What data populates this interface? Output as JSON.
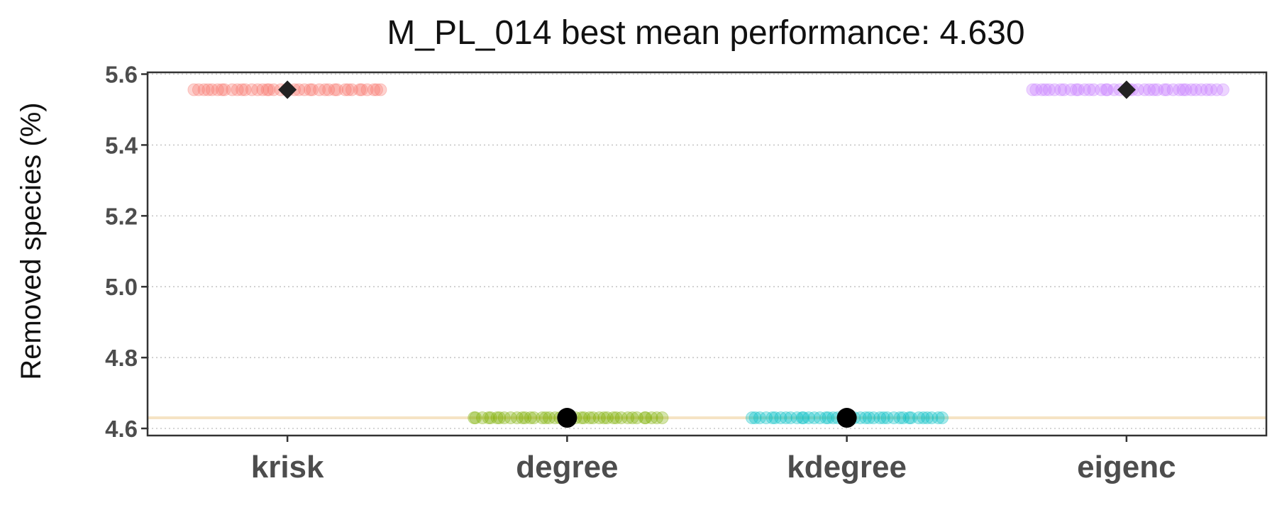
{
  "chart_data": {
    "type": "scatter",
    "title": "M_PL_014 best mean performance: 4.630",
    "xlabel": "",
    "ylabel": "Removed species (%)",
    "ylim": [
      4.58,
      5.605
    ],
    "yticks": [
      "4.6",
      "4.8",
      "5.0",
      "5.2",
      "5.4",
      "5.6"
    ],
    "categories": [
      "krisk",
      "degree",
      "kdegree",
      "eigenc"
    ],
    "grid": "horizontal dotted",
    "legend": "none",
    "reference_line": {
      "y": 4.63,
      "color": "#f5e3c4"
    },
    "series": [
      {
        "category": "krisk",
        "color": "#f8766d",
        "mean": 5.556,
        "mean_marker": "diamond",
        "value": 5.556,
        "jitter_halfwidth": 0.34,
        "n_points": 40
      },
      {
        "category": "degree",
        "color": "#7cae00",
        "mean": 4.63,
        "mean_marker": "circle",
        "value": 4.63,
        "jitter_halfwidth": 0.34,
        "n_points": 40
      },
      {
        "category": "kdegree",
        "color": "#00bfc4",
        "mean": 4.63,
        "mean_marker": "circle",
        "value": 4.63,
        "jitter_halfwidth": 0.34,
        "n_points": 40
      },
      {
        "category": "eigenc",
        "color": "#c77cff",
        "mean": 5.556,
        "mean_marker": "diamond",
        "value": 5.556,
        "jitter_halfwidth": 0.34,
        "n_points": 40
      }
    ]
  }
}
